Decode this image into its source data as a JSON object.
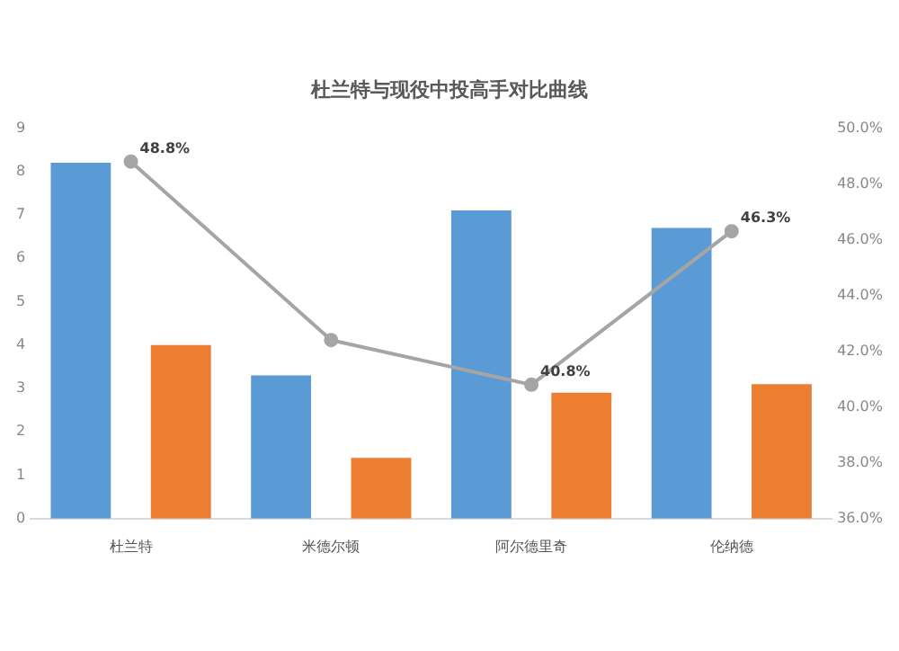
{
  "chart_data": {
    "type": "bar",
    "title": "杜兰特与现役中投高手对比曲线",
    "categories": [
      "杜兰特",
      "米德尔顿",
      "阿尔德里奇",
      "伦纳德"
    ],
    "series": [
      {
        "color": "#5b9bd5",
        "values": [
          8.2,
          3.3,
          7.1,
          6.7
        ]
      },
      {
        "color": "#ed7d31",
        "values": [
          4.0,
          1.4,
          2.9,
          3.1
        ]
      },
      {
        "type": "line",
        "axis": "y2",
        "color": "#a5a5a5",
        "values": [
          48.8,
          42.4,
          40.8,
          46.3
        ],
        "value_labels": [
          "48.8%",
          null,
          "40.8%",
          "46.3%"
        ]
      }
    ],
    "ylim": [
      0,
      9
    ],
    "yticks": [
      0,
      1,
      2,
      3,
      4,
      5,
      6,
      7,
      8,
      9
    ],
    "y2lim": [
      36,
      50
    ],
    "y2ticks": [
      {
        "value": 36,
        "label": "36.0%"
      },
      {
        "value": 38,
        "label": "38.0%"
      },
      {
        "value": 40,
        "label": "40.0%"
      },
      {
        "value": 42,
        "label": "42.0%"
      },
      {
        "value": 44,
        "label": "44.0%"
      },
      {
        "value": 46,
        "label": "46.0%"
      },
      {
        "value": 48,
        "label": "48.0%"
      },
      {
        "value": 50,
        "label": "50.0%"
      }
    ],
    "grid": false,
    "legend": false,
    "marker": "circle",
    "line_style": "solid"
  }
}
